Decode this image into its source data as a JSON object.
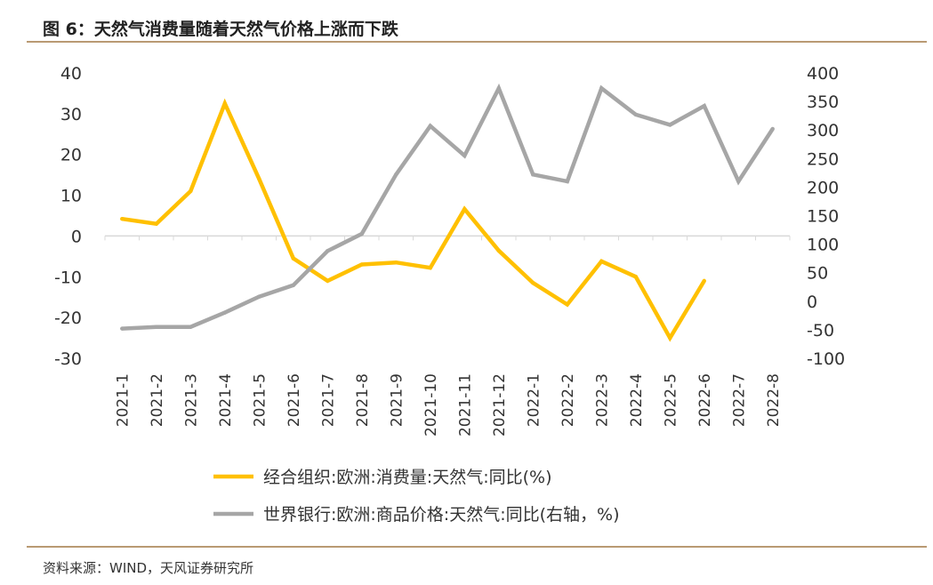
{
  "header": {
    "title": "图 6：天然气消费量随着天然气价格上涨而下跌"
  },
  "footer": {
    "source": "资料来源：WIND，天风证券研究所"
  },
  "chart_data": {
    "type": "line",
    "categories": [
      "2021-1",
      "2021-2",
      "2021-3",
      "2021-4",
      "2021-5",
      "2021-6",
      "2021-7",
      "2021-8",
      "2021-9",
      "2021-10",
      "2021-11",
      "2021-12",
      "2022-1",
      "2022-2",
      "2022-3",
      "2022-4",
      "2022-5",
      "2022-6",
      "2022-7",
      "2022-8"
    ],
    "left_axis": {
      "ylim": [
        -30,
        40
      ],
      "ticks": [
        40,
        30,
        20,
        10,
        0,
        -10,
        -20,
        -30
      ]
    },
    "right_axis": {
      "ylim": [
        -100,
        400
      ],
      "ticks": [
        400,
        350,
        300,
        250,
        200,
        150,
        100,
        50,
        0,
        -50,
        -100
      ]
    },
    "legend_position": "bottom",
    "grid": false,
    "series": [
      {
        "name": "经合组织:欧洲:消费量:天然气:同比(%)",
        "axis": "left",
        "color": "#ffc000",
        "values": [
          4.2,
          3,
          11,
          32.5,
          14,
          -5.5,
          -11,
          -7,
          -6.5,
          -7.8,
          6.6,
          -3.6,
          -11.5,
          -16.8,
          -6.2,
          -10,
          -25,
          -11,
          null,
          null
        ]
      },
      {
        "name": "世界银行:欧洲:商品价格:天然气:同比(右轴，%)",
        "axis": "right",
        "color": "#a6a6a6",
        "values": [
          -48,
          -45,
          -45,
          -20,
          8,
          28,
          88,
          118,
          222,
          307,
          255,
          373,
          222,
          210,
          373,
          327,
          309,
          342,
          210,
          302
        ]
      }
    ]
  }
}
